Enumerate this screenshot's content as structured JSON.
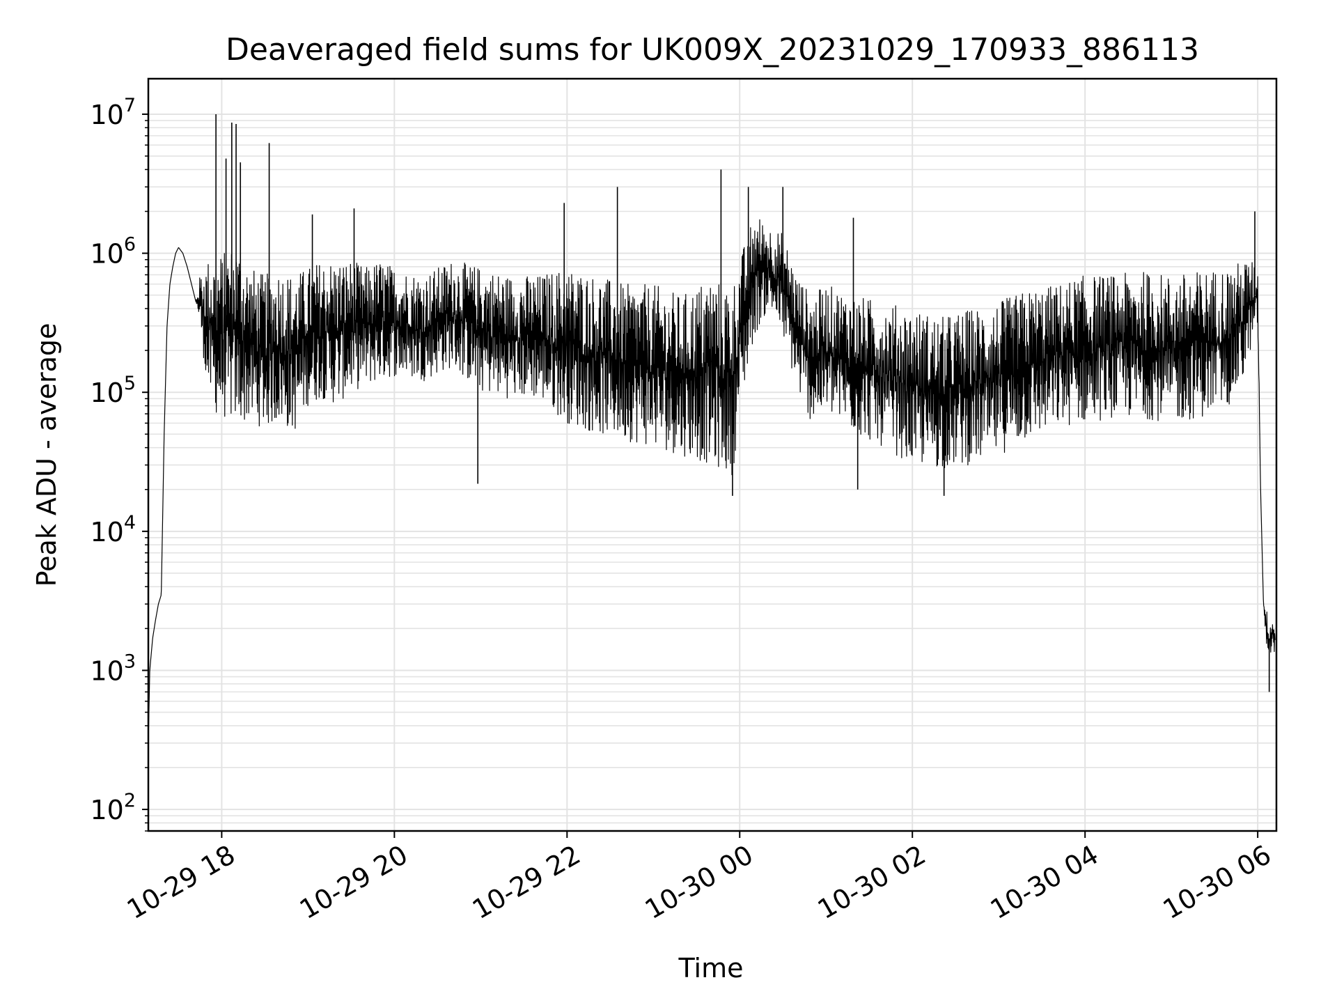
{
  "chart_data": {
    "type": "line",
    "title": "Deaveraged field sums for UK009X_20231029_170933_886113",
    "xlabel": "Time",
    "ylabel": "Peak ADU - average",
    "y_scale": "log",
    "ylim": [
      70,
      18000000
    ],
    "xlim": [
      "2023-10-29 17:09",
      "2023-10-30 06:13"
    ],
    "grid": true,
    "legend": "none",
    "line_color": "#000000",
    "grid_color": "#e3e3e3",
    "x_ticks": [
      {
        "value": "2023-10-29 18:00",
        "label": "10-29 18"
      },
      {
        "value": "2023-10-29 20:00",
        "label": "10-29 20"
      },
      {
        "value": "2023-10-29 22:00",
        "label": "10-29 22"
      },
      {
        "value": "2023-10-30 00:00",
        "label": "10-30 00"
      },
      {
        "value": "2023-10-30 02:00",
        "label": "10-30 02"
      },
      {
        "value": "2023-10-30 04:00",
        "label": "10-30 04"
      },
      {
        "value": "2023-10-30 06:00",
        "label": "10-30 06"
      }
    ],
    "y_ticks": [
      {
        "value": 100,
        "base": "10",
        "exp": "2"
      },
      {
        "value": 1000,
        "base": "10",
        "exp": "3"
      },
      {
        "value": 10000,
        "base": "10",
        "exp": "4"
      },
      {
        "value": 100000,
        "base": "10",
        "exp": "5"
      },
      {
        "value": 1000000,
        "base": "10",
        "exp": "6"
      },
      {
        "value": 10000000,
        "base": "10",
        "exp": "7"
      }
    ],
    "series": [
      {
        "x": [
          "2023-10-29 17:09",
          "2023-10-29 17:10",
          "2023-10-29 17:12",
          "2023-10-29 17:14",
          "2023-10-29 17:16",
          "2023-10-29 17:18",
          "2023-10-29 17:20",
          "2023-10-29 17:22",
          "2023-10-29 17:24",
          "2023-10-29 17:26",
          "2023-10-29 17:28",
          "2023-10-29 17:30",
          "2023-10-29 17:33",
          "2023-10-29 17:36",
          "2023-10-29 17:39",
          "2023-10-29 17:42",
          "2023-10-29 17:45",
          "2023-10-29 17:50",
          "2023-10-29 17:55",
          "2023-10-29 18:00",
          "2023-10-29 18:10",
          "2023-10-29 18:20",
          "2023-10-29 18:30",
          "2023-10-29 18:40",
          "2023-10-29 18:50",
          "2023-10-29 19:00",
          "2023-10-29 19:10",
          "2023-10-29 19:20",
          "2023-10-29 19:30",
          "2023-10-29 19:40",
          "2023-10-29 19:50",
          "2023-10-29 20:00",
          "2023-10-29 20:20",
          "2023-10-29 20:40",
          "2023-10-29 21:00",
          "2023-10-29 21:20",
          "2023-10-29 21:40",
          "2023-10-29 22:00",
          "2023-10-29 22:20",
          "2023-10-29 22:40",
          "2023-10-29 23:00",
          "2023-10-29 23:20",
          "2023-10-29 23:40",
          "2023-10-29 23:55",
          "2023-10-30 00:00",
          "2023-10-30 00:10",
          "2023-10-30 00:20",
          "2023-10-30 00:30",
          "2023-10-30 00:40",
          "2023-10-30 00:50",
          "2023-10-30 01:00",
          "2023-10-30 01:20",
          "2023-10-30 01:40",
          "2023-10-30 02:00",
          "2023-10-30 02:20",
          "2023-10-30 02:40",
          "2023-10-30 03:00",
          "2023-10-30 03:20",
          "2023-10-30 03:40",
          "2023-10-30 04:00",
          "2023-10-30 04:20",
          "2023-10-30 04:40",
          "2023-10-30 05:00",
          "2023-10-30 05:20",
          "2023-10-30 05:40",
          "2023-10-30 05:50",
          "2023-10-30 05:55",
          "2023-10-30 06:00",
          "2023-10-30 06:02",
          "2023-10-30 06:04",
          "2023-10-30 06:06",
          "2023-10-30 06:08",
          "2023-10-30 06:10",
          "2023-10-30 06:12"
        ],
        "y": [
          300,
          1000,
          1700,
          2300,
          3000,
          3500,
          50000,
          300000,
          600000,
          800000,
          1000000,
          1100000,
          1000000,
          800000,
          600000,
          450000,
          400000,
          300000,
          250000,
          200000,
          180000,
          160000,
          150000,
          160000,
          140000,
          200000,
          220000,
          200000,
          250000,
          280000,
          300000,
          300000,
          300000,
          350000,
          300000,
          260000,
          260000,
          220000,
          180000,
          150000,
          120000,
          110000,
          100000,
          80000,
          200000,
          600000,
          900000,
          600000,
          300000,
          200000,
          250000,
          180000,
          150000,
          100000,
          90000,
          100000,
          120000,
          150000,
          180000,
          200000,
          220000,
          230000,
          210000,
          250000,
          300000,
          400000,
          500000,
          500000,
          20000,
          3000,
          2000,
          1500,
          2000,
          1800
        ],
        "lower": [
          300,
          1000,
          1700,
          2300,
          3000,
          3500,
          50000,
          300000,
          600000,
          800000,
          1000000,
          1100000,
          1000000,
          800000,
          600000,
          450000,
          300000,
          100000,
          70000,
          65000,
          60000,
          60000,
          55000,
          60000,
          50000,
          80000,
          90000,
          80000,
          100000,
          110000,
          120000,
          130000,
          120000,
          150000,
          100000,
          90000,
          90000,
          60000,
          50000,
          45000,
          40000,
          35000,
          30000,
          25000,
          70000,
          250000,
          400000,
          250000,
          100000,
          60000,
          70000,
          50000,
          40000,
          30000,
          28000,
          30000,
          35000,
          45000,
          55000,
          60000,
          65000,
          65000,
          60000,
          65000,
          80000,
          120000,
          200000,
          300000,
          20000,
          3000,
          1500,
          1200,
          1500,
          1300
        ],
        "upper": [
          300,
          1000,
          1700,
          2300,
          3000,
          3500,
          50000,
          300000,
          600000,
          800000,
          1000000,
          1100000,
          1000000,
          800000,
          600000,
          450000,
          700000,
          900000,
          1000000,
          1000000,
          1200000,
          800000,
          700000,
          800000,
          700000,
          800000,
          900000,
          900000,
          900000,
          800000,
          900000,
          800000,
          700000,
          900000,
          800000,
          700000,
          700000,
          800000,
          700000,
          600000,
          600000,
          500000,
          700000,
          600000,
          900000,
          2000000,
          1600000,
          1400000,
          700000,
          500000,
          600000,
          500000,
          450000,
          400000,
          350000,
          400000,
          450000,
          550000,
          600000,
          700000,
          700000,
          750000,
          700000,
          750000,
          800000,
          900000,
          900000,
          800000,
          20000,
          3000,
          2800,
          2200,
          2400,
          2200
        ],
        "spikes": [
          {
            "x": "2023-10-29 17:56",
            "y": 10000000
          },
          {
            "x": "2023-10-29 18:03",
            "y": 4800000
          },
          {
            "x": "2023-10-29 18:07",
            "y": 8700000
          },
          {
            "x": "2023-10-29 18:10",
            "y": 8500000
          },
          {
            "x": "2023-10-29 18:13",
            "y": 4500000
          },
          {
            "x": "2023-10-29 18:33",
            "y": 6200000
          },
          {
            "x": "2023-10-29 19:03",
            "y": 1900000
          },
          {
            "x": "2023-10-29 19:32",
            "y": 2100000
          },
          {
            "x": "2023-10-29 21:58",
            "y": 2300000
          },
          {
            "x": "2023-10-29 22:35",
            "y": 3000000
          },
          {
            "x": "2023-10-29 23:47",
            "y": 4000000
          },
          {
            "x": "2023-10-30 00:06",
            "y": 3000000
          },
          {
            "x": "2023-10-30 00:30",
            "y": 3000000
          },
          {
            "x": "2023-10-30 01:19",
            "y": 1800000
          },
          {
            "x": "2023-10-30 05:58",
            "y": 2000000
          }
        ],
        "dips": [
          {
            "x": "2023-10-29 20:58",
            "y": 22000
          },
          {
            "x": "2023-10-29 23:55",
            "y": 18000
          },
          {
            "x": "2023-10-30 01:22",
            "y": 20000
          },
          {
            "x": "2023-10-30 02:22",
            "y": 18000
          },
          {
            "x": "2023-10-30 06:08",
            "y": 700
          }
        ]
      }
    ]
  }
}
